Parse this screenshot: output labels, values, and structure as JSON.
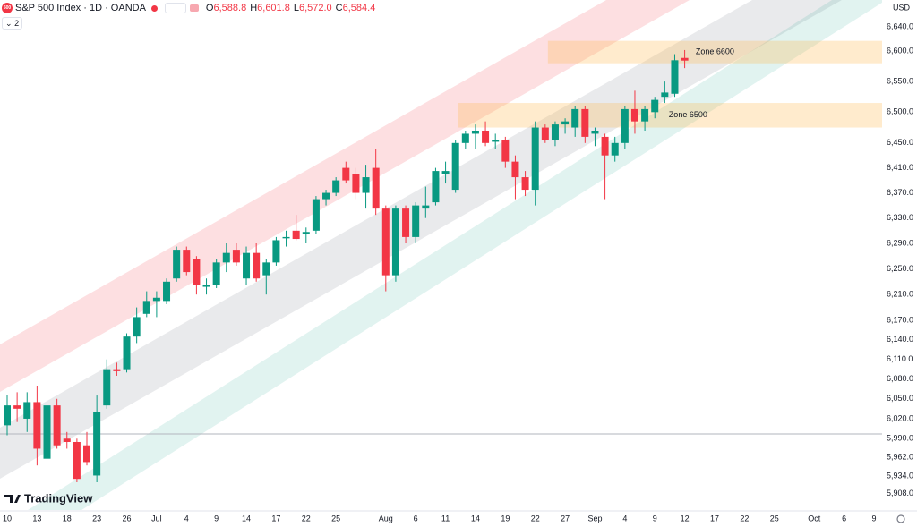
{
  "chart_data": {
    "type": "candlestick",
    "symbol_badge": "500",
    "title": "S&P 500 Index · 1D · OANDA",
    "ohlc_legend": [
      {
        "label": "O",
        "value": "6,588.8"
      },
      {
        "label": "H",
        "value": "6,601.8"
      },
      {
        "label": "L",
        "value": "6,572.0"
      },
      {
        "label": "C",
        "value": "6,584.4"
      }
    ],
    "indicator_count": "2",
    "currency": "USD",
    "brand": "TradingView",
    "colors": {
      "up": "#089981",
      "down": "#f23645"
    },
    "log_scale": true,
    "grid": false,
    "categories": [
      "10",
      null,
      null,
      "13",
      null,
      null,
      "18",
      null,
      null,
      "23",
      null,
      null,
      "26",
      null,
      null,
      "Jul",
      null,
      null,
      "4",
      null,
      null,
      "9",
      null,
      null,
      "14",
      null,
      null,
      "17",
      null,
      null,
      "22",
      null,
      null,
      "25",
      null,
      null,
      null,
      null,
      "Aug",
      null,
      null,
      "6",
      null,
      null,
      "11",
      null,
      null,
      "14",
      null,
      null,
      "19",
      null,
      null,
      "22",
      null,
      null,
      "27",
      null,
      null,
      "Sep",
      null,
      null,
      "4",
      null,
      null,
      "9",
      null,
      null,
      "12",
      null,
      null,
      "17",
      null,
      null,
      "22",
      null,
      null,
      "25",
      null,
      null,
      null,
      "Oct",
      null,
      null,
      "6",
      null,
      null,
      "9"
    ],
    "open": [
      6010,
      6040,
      6020,
      6045,
      5960,
      6040,
      5990,
      5985,
      5980,
      5935,
      6040,
      6095,
      6095,
      6145,
      6180,
      6200,
      6200,
      6235,
      6280,
      6265,
      6222,
      6225,
      6260,
      6280,
      6235,
      6275,
      6240,
      6260,
      6298,
      6310,
      6305,
      6310,
      6360,
      6370,
      6410,
      6400,
      6370,
      6410,
      6345,
      6240,
      6345,
      6300,
      6345,
      6355,
      6400,
      6375,
      6450,
      6465,
      6470,
      6452,
      6455,
      6420,
      6395,
      6375,
      6475,
      6455,
      6480,
      6475,
      6505,
      6465,
      6460,
      6430,
      6450,
      6505,
      6485,
      6500,
      6525,
      6530,
      6588.8,
      null,
      null,
      null,
      null,
      null,
      null,
      null,
      null,
      null,
      null,
      null,
      null,
      null,
      null,
      null,
      null,
      null,
      null,
      null
    ],
    "high": [
      6055,
      6060,
      6060,
      6070,
      6050,
      6050,
      6000,
      5990,
      6000,
      6055,
      6110,
      6105,
      6150,
      6190,
      6215,
      6215,
      6235,
      6285,
      6285,
      6270,
      6235,
      6265,
      6290,
      6290,
      6285,
      6290,
      6265,
      6300,
      6310,
      6335,
      6315,
      6365,
      6375,
      6395,
      6420,
      6410,
      6415,
      6440,
      6350,
      6350,
      6350,
      6355,
      6380,
      6410,
      6420,
      6455,
      6470,
      6480,
      6485,
      6465,
      6460,
      6430,
      6405,
      6485,
      6480,
      6485,
      6490,
      6510,
      6510,
      6475,
      6465,
      6460,
      6510,
      6535,
      6510,
      6525,
      6550,
      6595,
      6601.8,
      null,
      null,
      null,
      null,
      null,
      null,
      null,
      null,
      null,
      null,
      null,
      null,
      null,
      null,
      null,
      null,
      null,
      null,
      null
    ],
    "low": [
      5995,
      6015,
      6000,
      5950,
      5950,
      5975,
      5975,
      5925,
      5950,
      5925,
      6035,
      6085,
      6090,
      6135,
      6175,
      6175,
      6195,
      6230,
      6240,
      6210,
      6210,
      6220,
      6245,
      6255,
      6225,
      6230,
      6210,
      6255,
      6285,
      6295,
      6290,
      6305,
      6350,
      6365,
      6385,
      6360,
      6345,
      6335,
      6215,
      6230,
      6290,
      6290,
      6330,
      6350,
      6385,
      6370,
      6440,
      6440,
      6445,
      6440,
      6410,
      6360,
      6365,
      6350,
      6450,
      6445,
      6465,
      6460,
      6450,
      6445,
      6360,
      6420,
      6440,
      6465,
      6470,
      6490,
      6515,
      6525,
      6572.0,
      null,
      null,
      null,
      null,
      null,
      null,
      null,
      null,
      null,
      null,
      null,
      null,
      null,
      null,
      null,
      null,
      null,
      null,
      null
    ],
    "close": [
      6040,
      6035,
      6045,
      5975,
      6040,
      5980,
      5985,
      5930,
      5955,
      6030,
      6095,
      6092,
      6145,
      6175,
      6200,
      6205,
      6230,
      6280,
      6245,
      6225,
      6225,
      6260,
      6275,
      6260,
      6275,
      6235,
      6260,
      6295,
      6300,
      6297,
      6308,
      6360,
      6370,
      6390,
      6390,
      6370,
      6395,
      6345,
      6240,
      6345,
      6300,
      6350,
      6350,
      6405,
      6405,
      6450,
      6465,
      6470,
      6450,
      6455,
      6420,
      6395,
      6375,
      6475,
      6455,
      6480,
      6485,
      6505,
      6460,
      6470,
      6430,
      6450,
      6505,
      6485,
      6505,
      6520,
      6532,
      6585,
      6584.4,
      null,
      null,
      null,
      null,
      null,
      null,
      null,
      null,
      null,
      null,
      null,
      null,
      null,
      null,
      null,
      null,
      null,
      null,
      null
    ],
    "ylim": [
      5884,
      6685
    ],
    "yticks": [
      {
        "value": 6640,
        "label": "6,640.0"
      },
      {
        "value": 6600,
        "label": "6,600.0"
      },
      {
        "value": 6550,
        "label": "6,550.0"
      },
      {
        "value": 6500,
        "label": "6,500.0"
      },
      {
        "value": 6450,
        "label": "6,450.0"
      },
      {
        "value": 6410,
        "label": "6,410.0"
      },
      {
        "value": 6370,
        "label": "6,370.0"
      },
      {
        "value": 6330,
        "label": "6,330.0"
      },
      {
        "value": 6290,
        "label": "6,290.0"
      },
      {
        "value": 6250,
        "label": "6,250.0"
      },
      {
        "value": 6210,
        "label": "6,210.0"
      },
      {
        "value": 6170,
        "label": "6,170.0"
      },
      {
        "value": 6140,
        "label": "6,140.0"
      },
      {
        "value": 6110,
        "label": "6,110.0"
      },
      {
        "value": 6080,
        "label": "6,080.0"
      },
      {
        "value": 6050,
        "label": "6,050.0"
      },
      {
        "value": 6020,
        "label": "6,020.0"
      },
      {
        "value": 5990,
        "label": "5,990.0"
      },
      {
        "value": 5962,
        "label": "5,962.0"
      },
      {
        "value": 5934,
        "label": "5,934.0"
      },
      {
        "value": 5908,
        "label": "5,908.0"
      }
    ],
    "zones": [
      {
        "label": "Zone 6600",
        "top": 6617,
        "bottom": 6580,
        "start": 54
      },
      {
        "label": "Zone 6500",
        "top": 6515,
        "bottom": 6475,
        "start": 45
      }
    ],
    "hline": 5997
  }
}
